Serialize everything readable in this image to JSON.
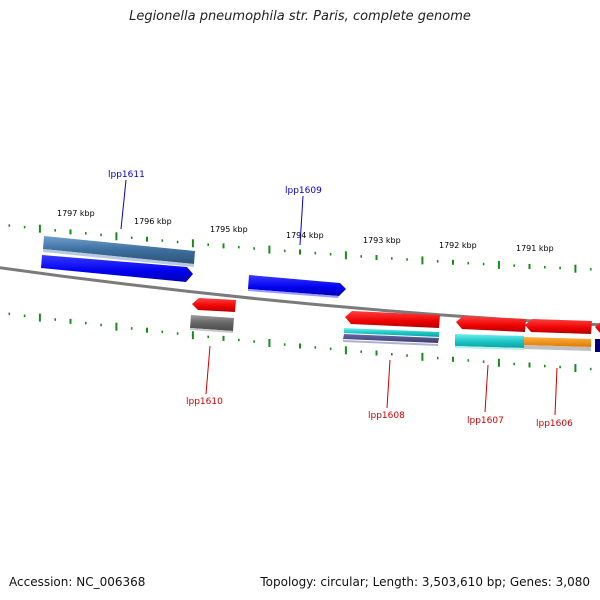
{
  "title": "Legionella pneumophila str. Paris, complete genome",
  "footer": {
    "accession": "Accession: NC_006368",
    "summary": "Topology: circular; Length: 3,503,610 bp; Genes: 3,080"
  },
  "colors": {
    "backbone": "#7a7a7a",
    "tick": "#1a8a1a",
    "label_forward": "#0000cc",
    "label_reverse": "#cc0000"
  },
  "scale_labels": [
    "1797 kbp",
    "1796 kbp",
    "1795 kbp",
    "1794 kbp",
    "1793 kbp",
    "1792 kbp",
    "1791 kbp"
  ],
  "gene_labels": [
    {
      "name": "lpp1611",
      "strand": "forward"
    },
    {
      "name": "lpp1609",
      "strand": "forward"
    },
    {
      "name": "lpp1610",
      "strand": "reverse"
    },
    {
      "name": "lpp1608",
      "strand": "reverse"
    },
    {
      "name": "lpp1607",
      "strand": "reverse"
    },
    {
      "name": "lpp1606",
      "strand": "reverse"
    }
  ]
}
